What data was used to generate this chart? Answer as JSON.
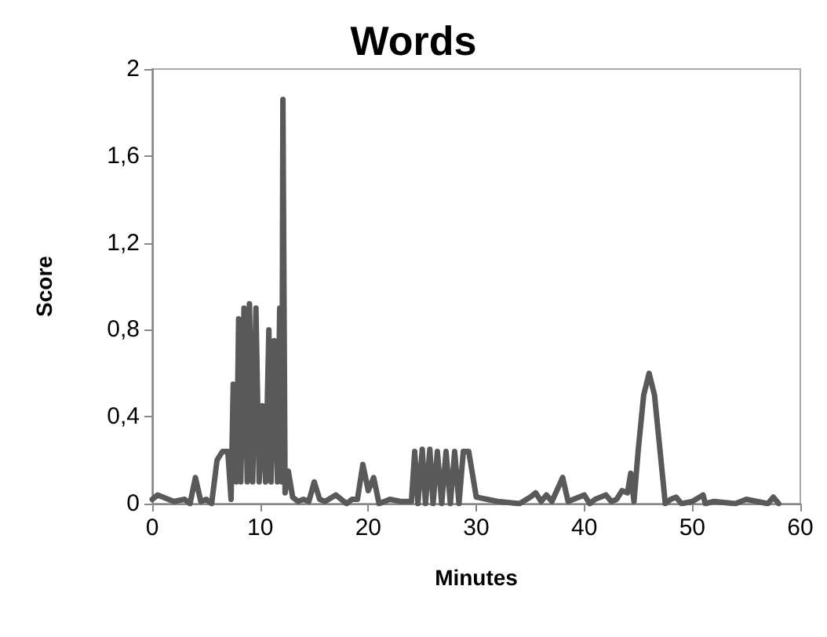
{
  "chart_data": {
    "type": "line",
    "title": "Words",
    "xlabel": "Minutes",
    "ylabel": "Score",
    "x": [
      0,
      0.5,
      1,
      2,
      3,
      3.5,
      4,
      4.5,
      5,
      5.5,
      6,
      6.5,
      7,
      7.3,
      7.5,
      7.8,
      8,
      8.2,
      8.5,
      8.8,
      9,
      9.3,
      9.6,
      9.9,
      10.2,
      10.5,
      10.8,
      11,
      11.3,
      11.6,
      11.8,
      12,
      12.1,
      12.3,
      12.6,
      13,
      13.5,
      14,
      14.5,
      15,
      15.5,
      16,
      17,
      18,
      18.5,
      19,
      19.5,
      20,
      20.5,
      21,
      22,
      23,
      24,
      24.3,
      24.6,
      25,
      25.3,
      25.7,
      26,
      26.4,
      26.8,
      27.2,
      27.6,
      28,
      28.4,
      28.8,
      29.3,
      30,
      31,
      32,
      34,
      35,
      35.5,
      36,
      36.5,
      37,
      38,
      38.5,
      39,
      40,
      40.5,
      41,
      42,
      42.5,
      43,
      43.5,
      44,
      44.3,
      44.6,
      45,
      45.5,
      46,
      46.5,
      47,
      47.5,
      48,
      48.5,
      49,
      50,
      51,
      51.2,
      52,
      54,
      55,
      56,
      57,
      57.5,
      58
    ],
    "series": [
      {
        "color": "#595959",
        "values": [
          0.02,
          0.04,
          0.03,
          0.01,
          0.02,
          0,
          0.12,
          0.01,
          0.02,
          0,
          0.2,
          0.24,
          0.24,
          0.02,
          0.55,
          0.1,
          0.85,
          0.1,
          0.9,
          0.1,
          0.92,
          0.1,
          0.9,
          0.1,
          0.45,
          0.1,
          0.8,
          0.1,
          0.75,
          0.1,
          0.9,
          0.1,
          1.86,
          0.05,
          0.15,
          0.03,
          0.01,
          0.02,
          0.01,
          0.1,
          0.02,
          0.01,
          0.04,
          0,
          0.02,
          0.02,
          0.18,
          0.06,
          0.12,
          0,
          0.02,
          0.01,
          0.01,
          0.24,
          0,
          0.25,
          0,
          0.25,
          0,
          0.24,
          0,
          0.24,
          0,
          0.24,
          0,
          0.24,
          0.24,
          0.03,
          0.02,
          0.01,
          0,
          0.03,
          0.05,
          0.01,
          0.04,
          0.01,
          0.12,
          0.01,
          0.02,
          0.04,
          0,
          0.02,
          0.04,
          0.01,
          0.02,
          0.06,
          0.05,
          0.14,
          0.01,
          0.25,
          0.5,
          0.6,
          0.5,
          0.25,
          0,
          0.02,
          0.03,
          0,
          0.01,
          0.04,
          0,
          0.01,
          0,
          0.02,
          0.01,
          0,
          0.03,
          0
        ]
      }
    ],
    "xlim": [
      0,
      60
    ],
    "xticks": [
      0,
      10,
      20,
      30,
      40,
      50,
      60
    ],
    "ylim": [
      0,
      2
    ],
    "yticks": [
      0,
      {
        "value": 0.4,
        "label": "0,4"
      },
      {
        "value": 0.8,
        "label": "0,8"
      },
      {
        "value": 1.2,
        "label": "1,2"
      },
      {
        "value": 1.6,
        "label": "1,6"
      },
      2
    ],
    "marker": "none",
    "line_style": "solid"
  }
}
